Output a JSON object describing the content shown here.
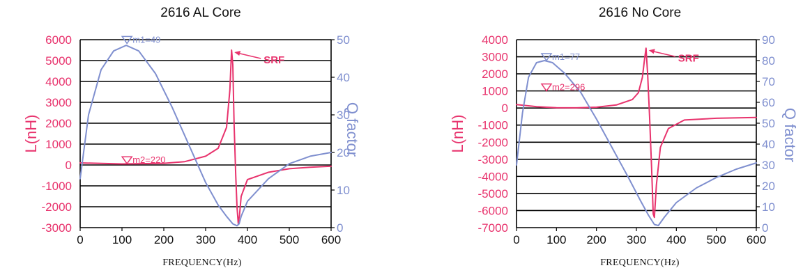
{
  "colors": {
    "inductance": "#e8336d",
    "q": "#7f8fcf",
    "grid": "#000000"
  },
  "chart_data": [
    {
      "type": "line",
      "title": "2616  AL Core",
      "xlabel": "FREQUENCY(Hz)",
      "ylabel_left": "L(nH)",
      "ylabel_right": "Q factor",
      "xlim": [
        0,
        600
      ],
      "ylim_left": [
        -3000,
        6000
      ],
      "ylim_right": [
        0,
        50
      ],
      "x_ticks": [
        "0",
        "100",
        "200",
        "300",
        "400",
        "500",
        "600"
      ],
      "y_left_ticks": [
        "6000",
        "5000",
        "4000",
        "3000",
        "2000",
        "1000",
        "0",
        "-1000",
        "-2000",
        "-3000"
      ],
      "y_right_ticks": [
        "50",
        "40",
        "30",
        "20",
        "10",
        "0"
      ],
      "grid": "horizontal",
      "series": [
        {
          "name": "L(nH)",
          "axis": "left",
          "x": [
            0,
            100,
            200,
            250,
            300,
            330,
            350,
            358,
            362,
            365,
            368,
            372,
            375,
            378,
            381,
            385,
            400,
            450,
            500,
            550,
            600
          ],
          "y": [
            100,
            50,
            80,
            160,
            420,
            800,
            1800,
            3600,
            5500,
            4800,
            2000,
            -500,
            -2000,
            -2800,
            -2400,
            -1500,
            -700,
            -350,
            -180,
            -110,
            -60
          ]
        },
        {
          "name": "Q factor",
          "axis": "right",
          "x": [
            0,
            20,
            50,
            80,
            110,
            140,
            180,
            220,
            260,
            300,
            330,
            350,
            365,
            375,
            380,
            385,
            400,
            450,
            500,
            550,
            600
          ],
          "y": [
            13,
            30,
            42,
            47,
            48.5,
            47,
            41,
            32,
            22,
            12,
            6,
            3,
            1,
            0.5,
            1,
            3,
            7,
            13,
            17,
            19,
            20
          ]
        }
      ],
      "annotations": [
        {
          "text": "m1=49",
          "series": "Q factor",
          "x": 112,
          "y": 49
        },
        {
          "text": "m2=220",
          "series": "L(nH)",
          "x": 112,
          "y": 60
        },
        {
          "text": "SRF",
          "series": "L(nH)",
          "x": 362,
          "y": 5500
        }
      ]
    },
    {
      "type": "line",
      "title": "2616  No Core",
      "xlabel": "FREQUENCY(Hz)",
      "ylabel_left": "L(nH)",
      "ylabel_right": "Q factor",
      "xlim": [
        0,
        600
      ],
      "ylim_left": [
        -7000,
        4000
      ],
      "ylim_right": [
        0,
        90
      ],
      "x_ticks": [
        "0",
        "100",
        "200",
        "300",
        "400",
        "500",
        "600"
      ],
      "y_left_ticks": [
        "4000",
        "3000",
        "2000",
        "1000",
        "0",
        "-1000",
        "-2000",
        "-3000",
        "-4000",
        "-5000",
        "-6000",
        "-7000"
      ],
      "y_right_ticks": [
        "90",
        "80",
        "70",
        "60",
        "50",
        "40",
        "30",
        "20",
        "10",
        "0"
      ],
      "grid": "horizontal",
      "series": [
        {
          "name": "L(nH)",
          "axis": "left",
          "x": [
            0,
            50,
            100,
            150,
            200,
            250,
            290,
            305,
            315,
            320,
            324,
            328,
            333,
            338,
            342,
            345,
            350,
            360,
            380,
            420,
            500,
            600
          ],
          "y": [
            200,
            80,
            20,
            10,
            50,
            180,
            500,
            900,
            1800,
            2800,
            3500,
            2000,
            -500,
            -3500,
            -6200,
            -6400,
            -4500,
            -2300,
            -1200,
            -700,
            -600,
            -550
          ]
        },
        {
          "name": "Q factor",
          "axis": "right",
          "x": [
            0,
            15,
            30,
            50,
            70,
            90,
            120,
            160,
            200,
            240,
            280,
            310,
            330,
            345,
            355,
            370,
            400,
            450,
            500,
            550,
            600
          ],
          "y": [
            30,
            55,
            72,
            79,
            80,
            79,
            74,
            65,
            52,
            38,
            24,
            13,
            6,
            1.5,
            1,
            5,
            12,
            19,
            24,
            28,
            31
          ]
        }
      ],
      "annotations": [
        {
          "text": "m1=77",
          "series": "Q factor",
          "x": 75,
          "y": 80
        },
        {
          "text": "m2=296",
          "series": "L(nH)",
          "x": 75,
          "y": 1000
        },
        {
          "text": "SRF",
          "series": "L(nH)",
          "x": 324,
          "y": 3500
        }
      ]
    }
  ]
}
